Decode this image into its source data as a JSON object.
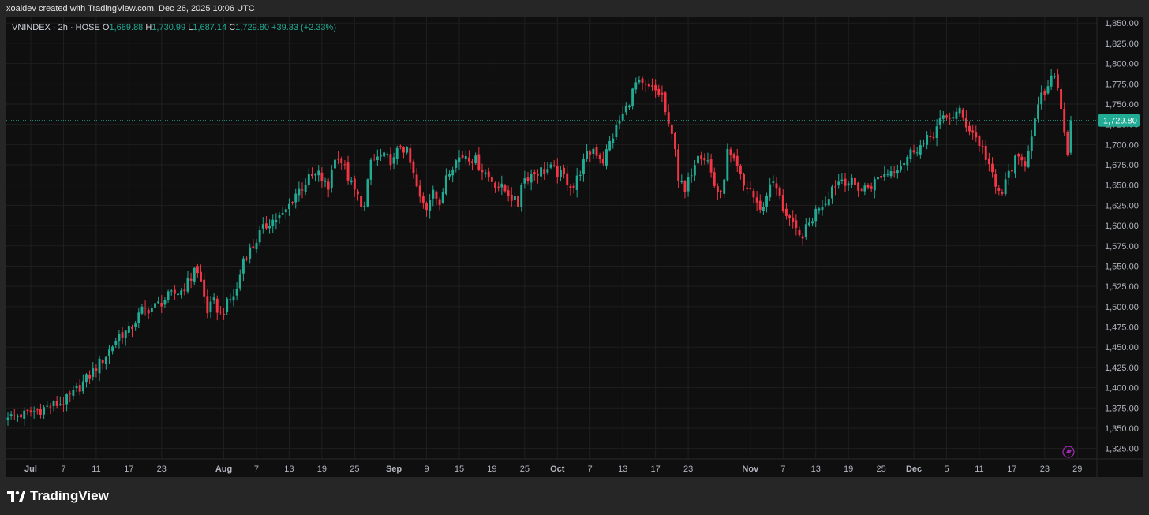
{
  "header": {
    "attribution": "xoaidev created with TradingView.com, Dec 26, 2025 10:06 UTC"
  },
  "legend": {
    "symbol": "VNINDEX · 2h · HOSE",
    "o_label": "O",
    "o_value": "1,689.88",
    "h_label": "H",
    "h_value": "1,730.99",
    "l_label": "L",
    "l_value": "1,687.14",
    "c_label": "C",
    "c_value": "1,729.80",
    "change": "+39.33 (+2.33%)"
  },
  "price_badge": "1,729.80",
  "brand": {
    "name": "TradingView"
  },
  "colors": {
    "up": "#22ab94",
    "down": "#f23645",
    "background": "#0f0f0f",
    "grid": "#1f1f1f",
    "text": "#b2b5be",
    "badge": "#22ab94",
    "event_icon": "#9c27b0"
  },
  "icons": {
    "event": "lightning-icon",
    "logo": "tradingview-logo-icon"
  },
  "chart_data": {
    "type": "candlestick",
    "title": "VNINDEX · 2h · HOSE",
    "ylim": [
      1312,
      1857
    ],
    "yticks": [
      "1,850.00",
      "1,825.00",
      "1,800.00",
      "1,775.00",
      "1,750.00",
      "1,725.00",
      "1,700.00",
      "1,675.00",
      "1,650.00",
      "1,625.00",
      "1,600.00",
      "1,575.00",
      "1,550.00",
      "1,525.00",
      "1,500.00",
      "1,475.00",
      "1,450.00",
      "1,425.00",
      "1,400.00",
      "1,375.00",
      "1,350.00",
      "1,325.00"
    ],
    "ytick_values": [
      1850,
      1825,
      1800,
      1775,
      1750,
      1725,
      1700,
      1675,
      1650,
      1625,
      1600,
      1575,
      1550,
      1525,
      1500,
      1475,
      1450,
      1425,
      1400,
      1375,
      1350,
      1325
    ],
    "xticks": [
      "Jul",
      "7",
      "11",
      "17",
      "23",
      "Aug",
      "7",
      "13",
      "19",
      "25",
      "Sep",
      "9",
      "15",
      "19",
      "25",
      "Oct",
      "7",
      "13",
      "17",
      "23",
      "Nov",
      "7",
      "13",
      "19",
      "25",
      "Dec",
      "5",
      "11",
      "17",
      "23",
      "29"
    ],
    "xtick_index": [
      7,
      17,
      27,
      37,
      47,
      66,
      76,
      86,
      96,
      106,
      118,
      128,
      138,
      148,
      158,
      168,
      178,
      188,
      198,
      208,
      227,
      237,
      247,
      257,
      267,
      277,
      287,
      297,
      307,
      317,
      327
    ],
    "last_price": 1729.8,
    "anchors": [
      [
        0,
        1363
      ],
      [
        6,
        1368
      ],
      [
        12,
        1376
      ],
      [
        17,
        1382
      ],
      [
        20,
        1392
      ],
      [
        26,
        1420
      ],
      [
        30,
        1440
      ],
      [
        34,
        1465
      ],
      [
        37,
        1470
      ],
      [
        41,
        1495
      ],
      [
        45,
        1500
      ],
      [
        49,
        1512
      ],
      [
        53,
        1520
      ],
      [
        56,
        1535
      ],
      [
        57,
        1550
      ],
      [
        59,
        1530
      ],
      [
        61,
        1495
      ],
      [
        63,
        1505
      ],
      [
        65,
        1490
      ],
      [
        67,
        1503
      ],
      [
        70,
        1520
      ],
      [
        72,
        1560
      ],
      [
        75,
        1575
      ],
      [
        77,
        1590
      ],
      [
        80,
        1605
      ],
      [
        84,
        1612
      ],
      [
        86,
        1625
      ],
      [
        88,
        1640
      ],
      [
        90,
        1648
      ],
      [
        92,
        1658
      ],
      [
        95,
        1663
      ],
      [
        98,
        1645
      ],
      [
        99,
        1672
      ],
      [
        101,
        1688
      ],
      [
        103,
        1670
      ],
      [
        105,
        1650
      ],
      [
        107,
        1635
      ],
      [
        109,
        1622
      ],
      [
        111,
        1680
      ],
      [
        114,
        1685
      ],
      [
        118,
        1680
      ],
      [
        120,
        1700
      ],
      [
        122,
        1690
      ],
      [
        124,
        1662
      ],
      [
        126,
        1632
      ],
      [
        128,
        1622
      ],
      [
        130,
        1650
      ],
      [
        132,
        1620
      ],
      [
        134,
        1665
      ],
      [
        136,
        1676
      ],
      [
        138,
        1684
      ],
      [
        140,
        1688
      ],
      [
        143,
        1680
      ],
      [
        147,
        1660
      ],
      [
        149,
        1652
      ],
      [
        153,
        1640
      ],
      [
        156,
        1625
      ],
      [
        157,
        1655
      ],
      [
        160,
        1664
      ],
      [
        163,
        1668
      ],
      [
        166,
        1670
      ],
      [
        170,
        1660
      ],
      [
        173,
        1647
      ],
      [
        175,
        1668
      ],
      [
        177,
        1686
      ],
      [
        179,
        1695
      ],
      [
        182,
        1680
      ],
      [
        184,
        1702
      ],
      [
        186,
        1720
      ],
      [
        189,
        1745
      ],
      [
        192,
        1775
      ],
      [
        195,
        1770
      ],
      [
        198,
        1766
      ],
      [
        200,
        1760
      ],
      [
        202,
        1720
      ],
      [
        204,
        1700
      ],
      [
        205,
        1658
      ],
      [
        207,
        1640
      ],
      [
        209,
        1668
      ],
      [
        211,
        1692
      ],
      [
        214,
        1680
      ],
      [
        216,
        1650
      ],
      [
        218,
        1635
      ],
      [
        220,
        1690
      ],
      [
        223,
        1670
      ],
      [
        225,
        1648
      ],
      [
        227,
        1645
      ],
      [
        229,
        1625
      ],
      [
        231,
        1622
      ],
      [
        233,
        1655
      ],
      [
        235,
        1645
      ],
      [
        237,
        1622
      ],
      [
        239,
        1608
      ],
      [
        240,
        1598
      ],
      [
        242,
        1585
      ],
      [
        244,
        1595
      ],
      [
        246,
        1610
      ],
      [
        248,
        1625
      ],
      [
        250,
        1630
      ],
      [
        252,
        1648
      ],
      [
        255,
        1658
      ],
      [
        258,
        1652
      ],
      [
        261,
        1645
      ],
      [
        264,
        1650
      ],
      [
        267,
        1662
      ],
      [
        270,
        1668
      ],
      [
        274,
        1680
      ],
      [
        277,
        1695
      ],
      [
        280,
        1700
      ],
      [
        283,
        1715
      ],
      [
        285,
        1728
      ],
      [
        288,
        1735
      ],
      [
        291,
        1740
      ],
      [
        293,
        1725
      ],
      [
        295,
        1715
      ],
      [
        298,
        1695
      ],
      [
        300,
        1675
      ],
      [
        302,
        1645
      ],
      [
        304,
        1640
      ],
      [
        306,
        1665
      ],
      [
        308,
        1680
      ],
      [
        311,
        1678
      ],
      [
        313,
        1715
      ],
      [
        316,
        1758
      ],
      [
        318,
        1768
      ],
      [
        320,
        1790
      ],
      [
        321,
        1770
      ],
      [
        323,
        1720
      ],
      [
        324,
        1690
      ],
      [
        325,
        1730
      ]
    ]
  }
}
